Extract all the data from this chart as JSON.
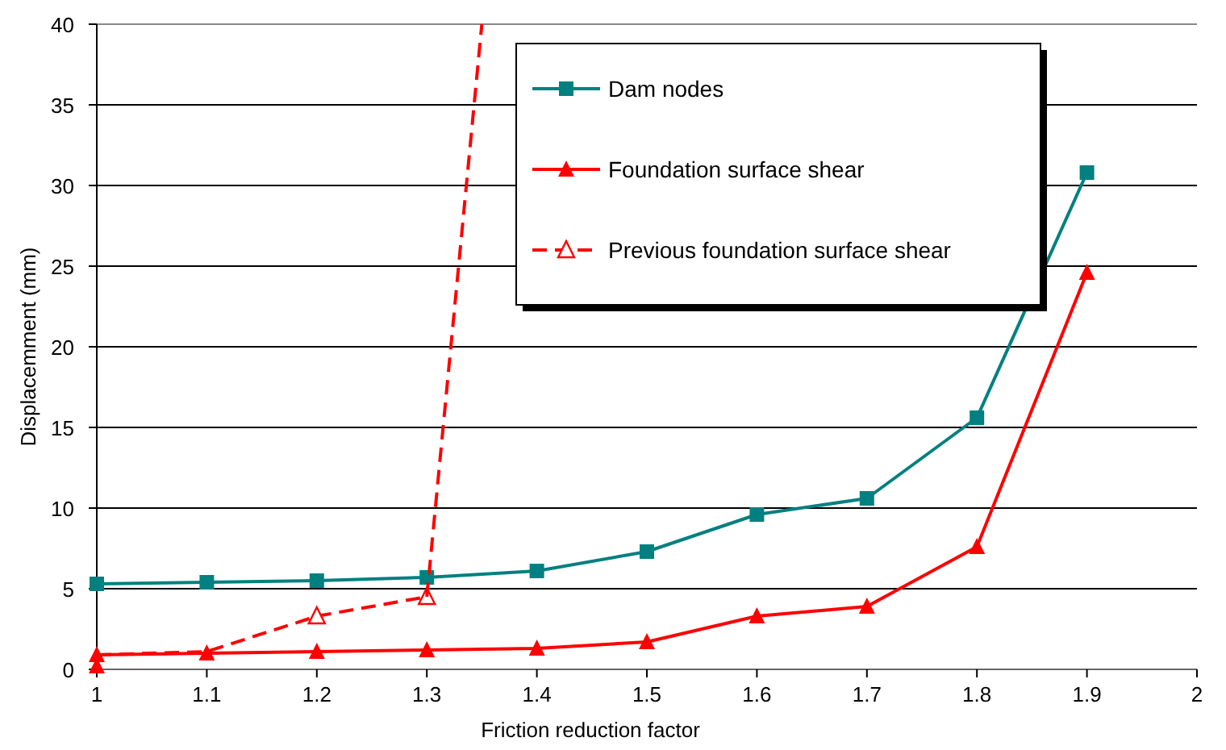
{
  "chart_data": {
    "type": "line",
    "xlabel": "Friction  reduction factor",
    "ylabel": "Displacemment (mm)",
    "xlim": [
      1,
      2
    ],
    "xticks": [
      1,
      1.1,
      1.2,
      1.3,
      1.4,
      1.5,
      1.6,
      1.7,
      1.8,
      1.9,
      2
    ],
    "ylim": [
      0,
      40
    ],
    "yticks": [
      0,
      5,
      10,
      15,
      20,
      25,
      30,
      35,
      40
    ],
    "grid": "y",
    "legend": "top right",
    "series": [
      {
        "type": "scatter",
        "color": "#ff0000",
        "marker": "triangle",
        "x": [
          1
        ],
        "values": [
          0.2
        ]
      },
      {
        "name": "Dam nodes",
        "color": "#008080",
        "marker": "square",
        "line_style": "solid",
        "x": [
          1,
          1.1,
          1.2,
          1.3,
          1.4,
          1.5,
          1.6,
          1.7,
          1.8,
          1.9
        ],
        "values": [
          5.3,
          5.4,
          5.5,
          5.7,
          6.1,
          7.3,
          9.6,
          10.6,
          15.6,
          30.8
        ]
      },
      {
        "name": "Foundation surface shear",
        "color": "#ff0000",
        "marker": "triangle",
        "line_style": "solid",
        "x": [
          1,
          1.1,
          1.2,
          1.3,
          1.4,
          1.5,
          1.6,
          1.7,
          1.8,
          1.9
        ],
        "values": [
          0.9,
          1.0,
          1.1,
          1.2,
          1.3,
          1.7,
          3.3,
          3.9,
          7.6,
          24.6
        ]
      },
      {
        "name": "Previous foundation surface shear",
        "color": "#ff0000",
        "marker": "triangle-open",
        "line_style": "dashed",
        "x": [
          1.2,
          1.3
        ],
        "values": [
          3.3,
          4.5
        ]
      },
      {
        "color": "#ff0000",
        "marker": "none",
        "line_style": "dashed",
        "x": [
          1,
          1.1,
          1.2
        ],
        "values": [
          0.9,
          1.1,
          3.3
        ]
      },
      {
        "color": "#ff0000",
        "marker": "none",
        "line_style": "dashed",
        "x": [
          1.3,
          1.35
        ],
        "values": [
          4.5,
          40
        ]
      }
    ]
  }
}
